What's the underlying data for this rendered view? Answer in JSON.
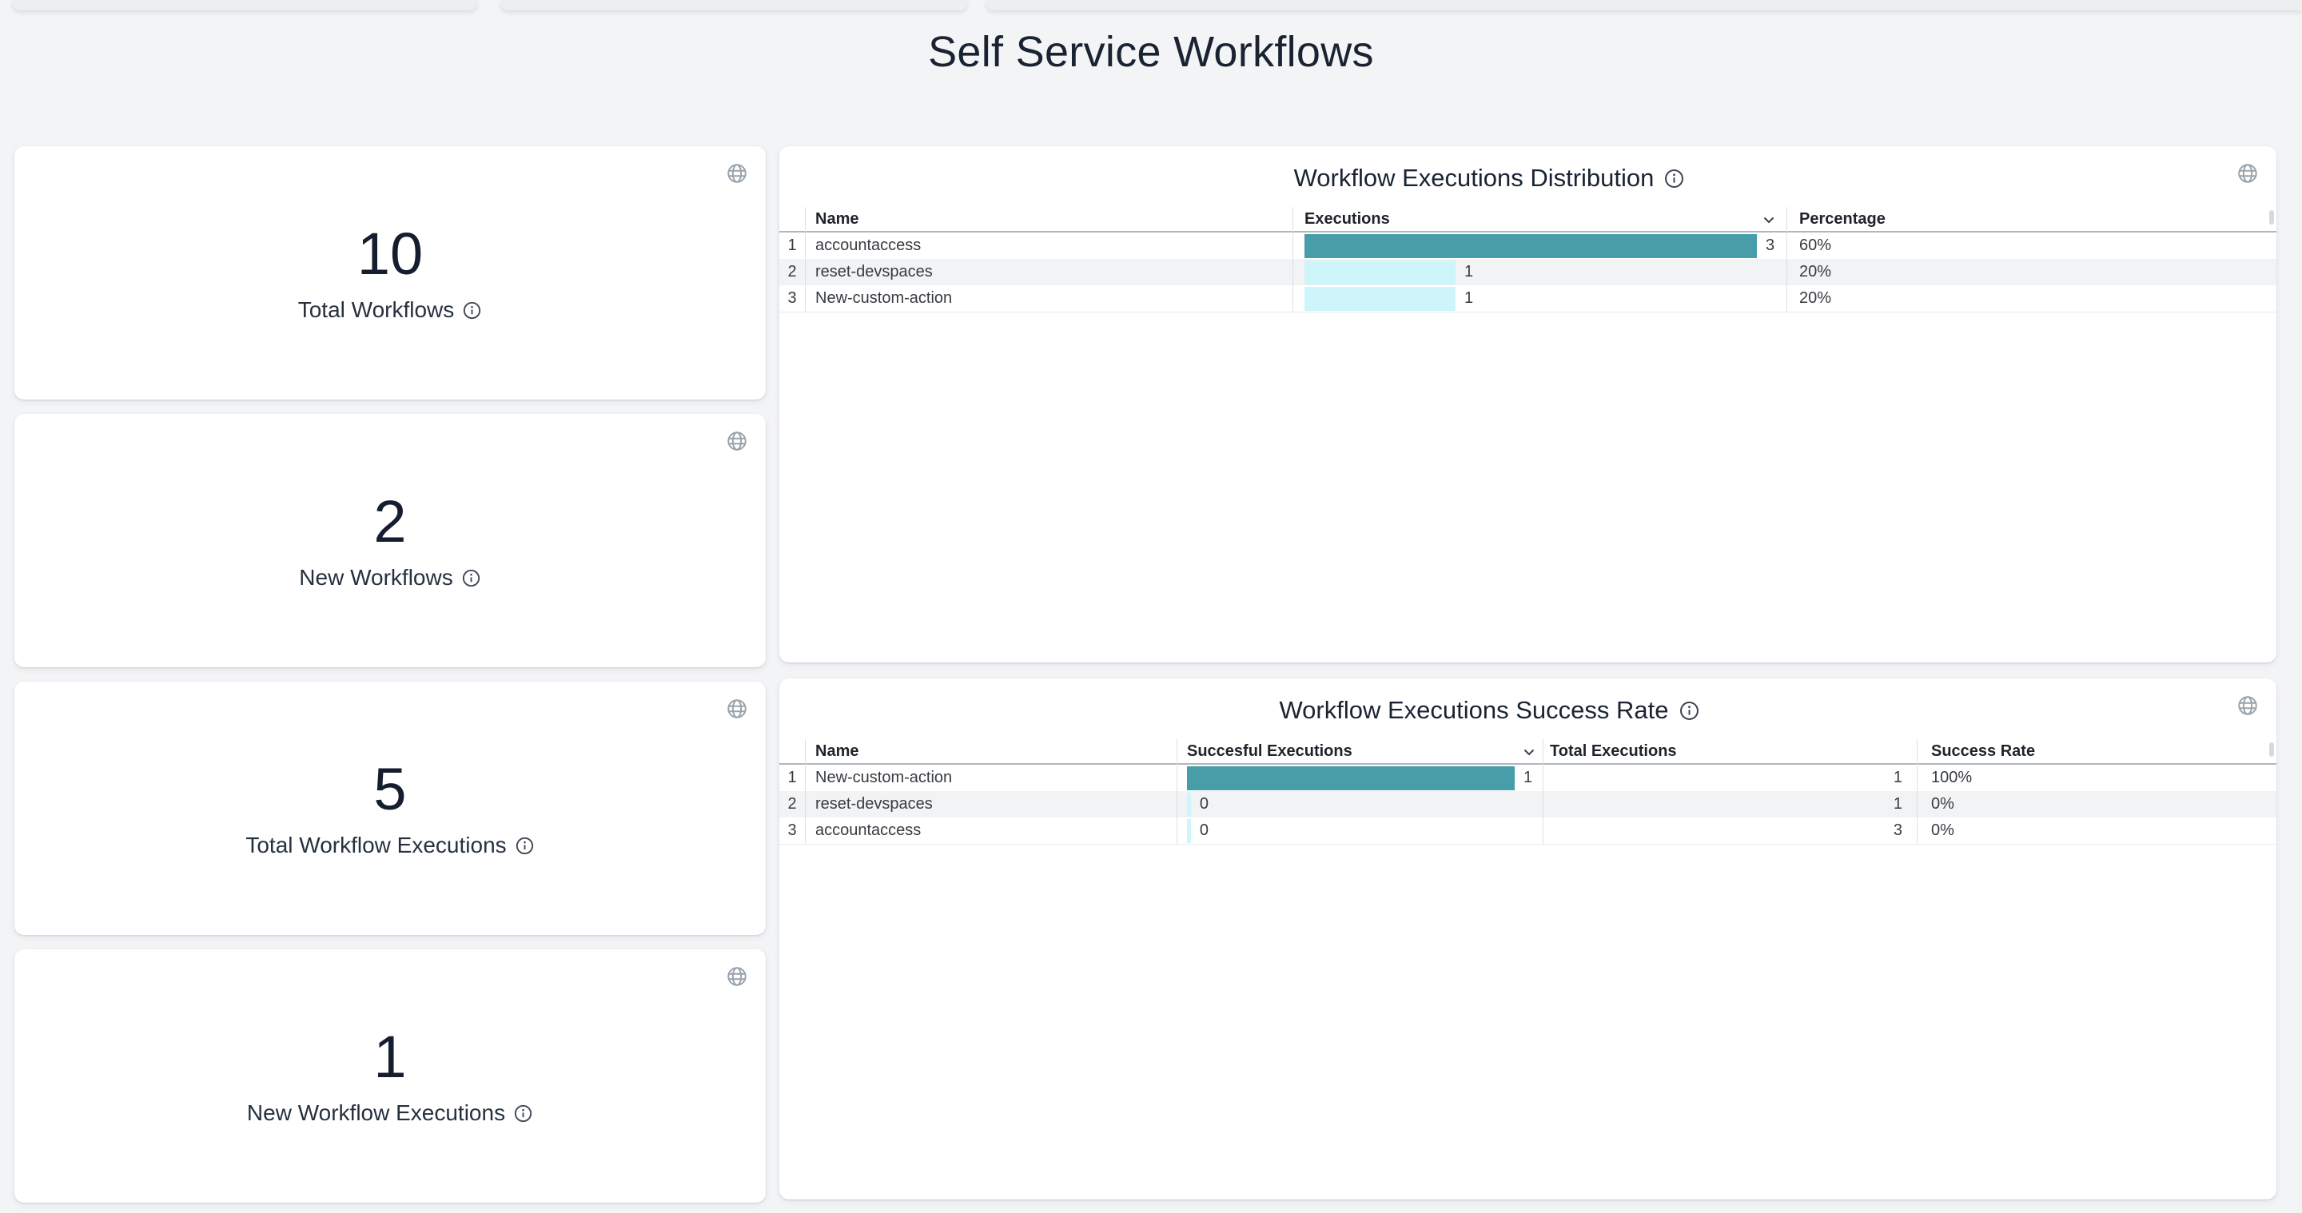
{
  "page": {
    "title": "Self Service Workflows"
  },
  "colors": {
    "bar_teal": "#479DA8",
    "bar_cyan": "#CDF5FA",
    "row_stripe": "#F1F3F4",
    "title_navy": "#1A2332",
    "icon_gray": "#9AA2AB"
  },
  "icons": {
    "globe": "globe-icon",
    "info": "info-icon",
    "sort": "chevron-down-icon"
  },
  "stat_cards": [
    {
      "value": "10",
      "label": "Total Workflows"
    },
    {
      "value": "2",
      "label": "New Workflows"
    },
    {
      "value": "5",
      "label": "Total Workflow Executions"
    },
    {
      "value": "1",
      "label": "New Workflow Executions"
    }
  ],
  "distribution_table": {
    "title": "Workflow Executions Distribution",
    "headers": {
      "name": "Name",
      "executions": "Executions",
      "percentage": "Percentage"
    },
    "sort": {
      "column": "Executions",
      "direction": "desc"
    },
    "rows": [
      {
        "index": "1",
        "name": "accountaccess",
        "executions": "3",
        "bar_pct": 100,
        "bar_color": "teal",
        "percentage": "60%"
      },
      {
        "index": "2",
        "name": "reset-devspaces",
        "executions": "1",
        "bar_pct": 33.4,
        "bar_color": "cyan",
        "percentage": "20%"
      },
      {
        "index": "3",
        "name": "New-custom-action",
        "executions": "1",
        "bar_pct": 33.4,
        "bar_color": "cyan",
        "percentage": "20%"
      }
    ]
  },
  "success_table": {
    "title": "Workflow Executions Success Rate",
    "headers": {
      "name": "Name",
      "successful": "Succesful Executions",
      "total": "Total Executions",
      "rate": "Success Rate"
    },
    "sort": {
      "column": "Succesful Executions",
      "direction": "desc"
    },
    "rows": [
      {
        "index": "1",
        "name": "New-custom-action",
        "successful": "1",
        "bar_pct": 100,
        "bar_color": "teal",
        "total": "1",
        "rate": "100%"
      },
      {
        "index": "2",
        "name": "reset-devspaces",
        "successful": "0",
        "bar_pct": 1.2,
        "bar_color": "cyan",
        "total": "1",
        "rate": "0%"
      },
      {
        "index": "3",
        "name": "accountaccess",
        "successful": "0",
        "bar_pct": 1.2,
        "bar_color": "cyan",
        "total": "3",
        "rate": "0%"
      }
    ]
  }
}
